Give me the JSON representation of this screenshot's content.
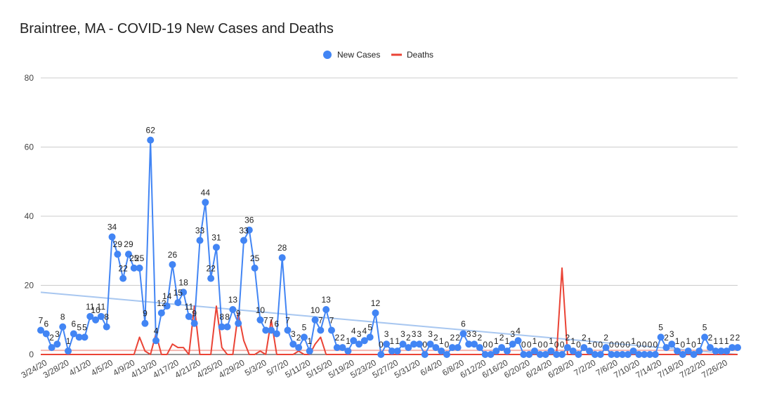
{
  "chart_data": {
    "type": "line",
    "title": "Braintree, MA - COVID-19 New Cases and Deaths",
    "xlabel": "",
    "ylabel": "",
    "ylim": [
      0,
      80
    ],
    "y_ticks": [
      0,
      20,
      40,
      60,
      80
    ],
    "grid": true,
    "legend_position": "top-center",
    "x_tick_labels": [
      "3/24/20",
      "3/28/20",
      "4/1/20",
      "4/5/20",
      "4/9/20",
      "4/13/20",
      "4/17/20",
      "4/21/20",
      "4/25/20",
      "4/29/20",
      "5/3/20",
      "5/7/20",
      "5/11/20",
      "5/15/20",
      "5/19/20",
      "5/23/20",
      "5/27/20",
      "5/31/20",
      "6/4/20",
      "6/8/20",
      "6/12/20",
      "6/16/20",
      "6/20/20",
      "6/24/20",
      "6/28/20",
      "7/2/20",
      "7/6/20",
      "7/10/20",
      "7/14/20",
      "7/18/20",
      "7/22/20",
      "7/26/20"
    ],
    "x_start": "3/23/20",
    "series": [
      {
        "name": "New Cases",
        "color": "#4285f4",
        "values": [
          7,
          6,
          2,
          3,
          8,
          1,
          6,
          5,
          5,
          11,
          10,
          11,
          8,
          34,
          29,
          22,
          29,
          25,
          25,
          9,
          62,
          4,
          12,
          14,
          26,
          15,
          18,
          11,
          9,
          33,
          44,
          22,
          31,
          8,
          8,
          13,
          9,
          33,
          36,
          25,
          10,
          7,
          7,
          6,
          28,
          7,
          3,
          2,
          5,
          1,
          10,
          7,
          13,
          7,
          2,
          2,
          1,
          4,
          3,
          4,
          5,
          12,
          0,
          3,
          1,
          1,
          3,
          2,
          3,
          3,
          0,
          3,
          2,
          1,
          0,
          2,
          2,
          6,
          3,
          3,
          2,
          0,
          0,
          1,
          2,
          1,
          3,
          4,
          0,
          0,
          1,
          0,
          0,
          1,
          0,
          0,
          2,
          1,
          0,
          2,
          1,
          0,
          0,
          2,
          0,
          0,
          0,
          0,
          1,
          0,
          0,
          0,
          0,
          5,
          2,
          3,
          1,
          0,
          1,
          0,
          1,
          5,
          2,
          1,
          1,
          1,
          2,
          2
        ]
      },
      {
        "name": "Deaths",
        "color": "#ea4335",
        "values": [
          0,
          0,
          0,
          0,
          0,
          0,
          0,
          0,
          0,
          0,
          0,
          0,
          0,
          0,
          0,
          0,
          0,
          0,
          5,
          1,
          0,
          6,
          0,
          0,
          3,
          2,
          2,
          0,
          14,
          0,
          0,
          0,
          14,
          2,
          0,
          0,
          12,
          4,
          0,
          0,
          1,
          0,
          10,
          0,
          0,
          0,
          0,
          1,
          0,
          0,
          3,
          5,
          0,
          0,
          0,
          0,
          0,
          0,
          0,
          0,
          0,
          0,
          0,
          0,
          0,
          0,
          0,
          0,
          0,
          0,
          0,
          0,
          0,
          0,
          0,
          0,
          0,
          0,
          0,
          0,
          0,
          0,
          0,
          0,
          0,
          0,
          0,
          0,
          0,
          0,
          0,
          0,
          0,
          0,
          0,
          25,
          0,
          0,
          0,
          0,
          0,
          0,
          0,
          0,
          0,
          0,
          0,
          0,
          0,
          0,
          0,
          0,
          0,
          0,
          0,
          0,
          0,
          0,
          0,
          0,
          0,
          0,
          0,
          0,
          0,
          0,
          0,
          0
        ]
      }
    ],
    "trendlines": [
      {
        "series": "New Cases",
        "color": "#a8c7f0",
        "start_value": 18,
        "end_value": 0
      },
      {
        "series": "Deaths",
        "color": "#f4b4ae",
        "start_value": 1.2,
        "end_value": 1.2
      }
    ]
  }
}
